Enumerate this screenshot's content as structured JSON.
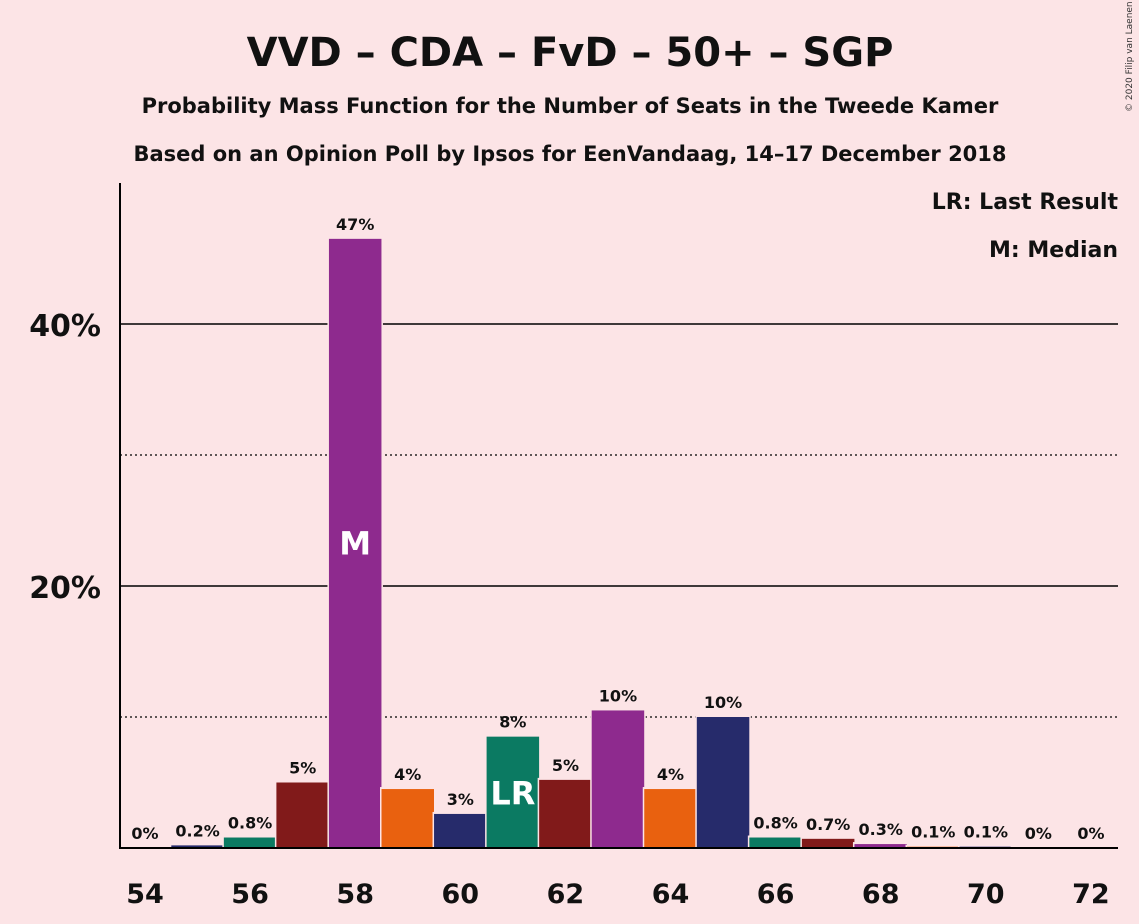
{
  "chart_data": {
    "type": "bar",
    "title": "VVD – CDA – FvD – 50+ – SGP",
    "subtitle": "Probability Mass Function for the Number of Seats in the Tweede Kamer",
    "subtitle2": "Based on an Opinion Poll by Ipsos for EenVandaag, 14–17 December 2018",
    "copyright": "© 2020 Filip van Laenen",
    "legend": {
      "last_result": "LR: Last Result",
      "median": "M: Median"
    },
    "ylim": [
      0,
      50
    ],
    "major_gridlines": [
      20,
      40
    ],
    "minor_gridlines": [
      10,
      30
    ],
    "ytick_labels": [
      "20%",
      "40%"
    ],
    "xtick_values": [
      54,
      56,
      58,
      60,
      62,
      64,
      66,
      68,
      70,
      72
    ],
    "xtick_labels": [
      "54",
      "56",
      "58",
      "60",
      "62",
      "64",
      "66",
      "68",
      "70",
      "72"
    ],
    "bars": [
      {
        "seats": 54,
        "value": 0.0,
        "label": "0%",
        "color": "#8e2a8e"
      },
      {
        "seats": 55,
        "value": 0.2,
        "label": "0.2%",
        "color": "#262b6b"
      },
      {
        "seats": 56,
        "value": 0.8,
        "label": "0.8%",
        "color": "#0b7a62"
      },
      {
        "seats": 57,
        "value": 5.0,
        "label": "5%",
        "color": "#811a1a"
      },
      {
        "seats": 58,
        "value": 46.5,
        "label": "47%",
        "color": "#8e2a8e",
        "marker": "M"
      },
      {
        "seats": 59,
        "value": 4.5,
        "label": "4%",
        "color": "#e9610f"
      },
      {
        "seats": 60,
        "value": 2.6,
        "label": "3%",
        "color": "#262b6b"
      },
      {
        "seats": 61,
        "value": 8.5,
        "label": "8%",
        "color": "#0b7a62",
        "marker": "LR"
      },
      {
        "seats": 62,
        "value": 5.2,
        "label": "5%",
        "color": "#811a1a"
      },
      {
        "seats": 63,
        "value": 10.5,
        "label": "10%",
        "color": "#8e2a8e"
      },
      {
        "seats": 64,
        "value": 4.5,
        "label": "4%",
        "color": "#e9610f"
      },
      {
        "seats": 65,
        "value": 10.0,
        "label": "10%",
        "color": "#262b6b"
      },
      {
        "seats": 66,
        "value": 0.8,
        "label": "0.8%",
        "color": "#0b7a62"
      },
      {
        "seats": 67,
        "value": 0.7,
        "label": "0.7%",
        "color": "#811a1a"
      },
      {
        "seats": 68,
        "value": 0.3,
        "label": "0.3%",
        "color": "#8e2a8e"
      },
      {
        "seats": 69,
        "value": 0.1,
        "label": "0.1%",
        "color": "#e9610f"
      },
      {
        "seats": 70,
        "value": 0.1,
        "label": "0.1%",
        "color": "#262b6b"
      },
      {
        "seats": 71,
        "value": 0.0,
        "label": "0%",
        "color": "#0b7a62"
      },
      {
        "seats": 72,
        "value": 0.0,
        "label": "0%",
        "color": "#811a1a"
      }
    ]
  }
}
